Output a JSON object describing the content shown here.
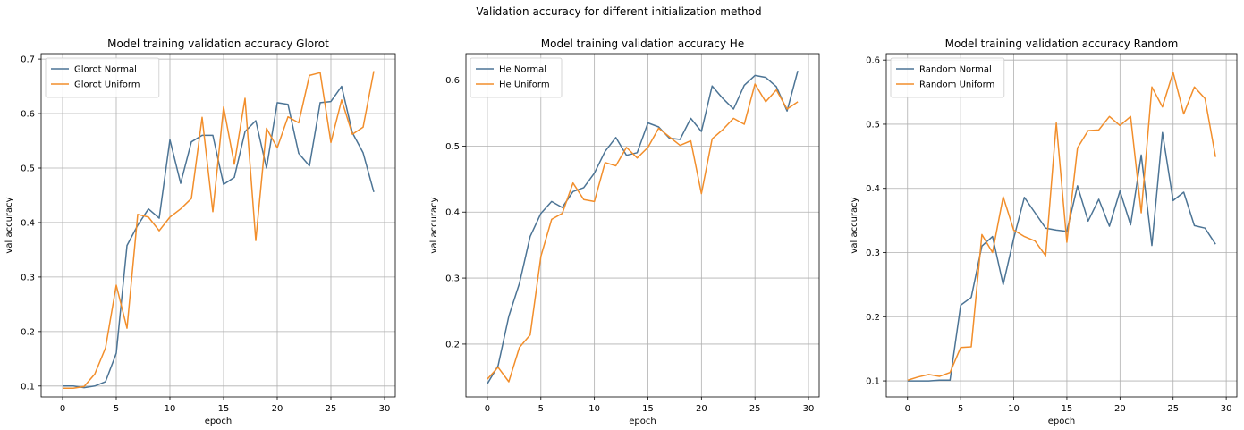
{
  "figure": {
    "suptitle": "Validation accuracy for different initialization method"
  },
  "chart_data": [
    {
      "type": "line",
      "title": "Model training validation accuracy Glorot",
      "xlabel": "epoch",
      "ylabel": "val accuracy",
      "xlim": [
        -2,
        31
      ],
      "ylim": [
        0.08,
        0.71
      ],
      "xticks": [
        0,
        5,
        10,
        15,
        20,
        25,
        30
      ],
      "yticks": [
        0.1,
        0.2,
        0.3,
        0.4,
        0.5,
        0.6,
        0.7
      ],
      "grid": true,
      "legend": "top-left",
      "x": [
        0,
        1,
        2,
        3,
        4,
        5,
        6,
        7,
        8,
        9,
        10,
        11,
        12,
        13,
        14,
        15,
        16,
        17,
        18,
        19,
        20,
        21,
        22,
        23,
        24,
        25,
        26,
        27,
        28,
        29
      ],
      "series": [
        {
          "name": "Glorot Normal",
          "color": "#4c7495",
          "values": [
            0.1,
            0.1,
            0.097,
            0.1,
            0.108,
            0.16,
            0.358,
            0.395,
            0.425,
            0.408,
            0.552,
            0.472,
            0.548,
            0.56,
            0.56,
            0.47,
            0.483,
            0.567,
            0.587,
            0.5,
            0.62,
            0.617,
            0.527,
            0.504,
            0.62,
            0.622,
            0.65,
            0.565,
            0.528,
            0.456
          ]
        },
        {
          "name": "Glorot Uniform",
          "color": "#f28e2b",
          "values": [
            0.096,
            0.096,
            0.099,
            0.122,
            0.17,
            0.285,
            0.206,
            0.415,
            0.41,
            0.385,
            0.41,
            0.425,
            0.444,
            0.593,
            0.42,
            0.612,
            0.507,
            0.628,
            0.367,
            0.573,
            0.537,
            0.594,
            0.583,
            0.67,
            0.675,
            0.547,
            0.625,
            0.562,
            0.575,
            0.678
          ]
        }
      ]
    },
    {
      "type": "line",
      "title": "Model training validation accuracy He",
      "xlabel": "epoch",
      "ylabel": "val accuracy",
      "xlim": [
        -2,
        31
      ],
      "ylim": [
        0.12,
        0.64
      ],
      "xticks": [
        0,
        5,
        10,
        15,
        20,
        25,
        30
      ],
      "yticks": [
        0.2,
        0.3,
        0.4,
        0.5,
        0.6
      ],
      "grid": true,
      "legend": "top-left",
      "x": [
        0,
        1,
        2,
        3,
        4,
        5,
        6,
        7,
        8,
        9,
        10,
        11,
        12,
        13,
        14,
        15,
        16,
        17,
        18,
        19,
        20,
        21,
        22,
        23,
        24,
        25,
        26,
        27,
        28,
        29
      ],
      "series": [
        {
          "name": "He Normal",
          "color": "#4c7495",
          "values": [
            0.14,
            0.167,
            0.242,
            0.292,
            0.363,
            0.398,
            0.416,
            0.407,
            0.431,
            0.437,
            0.459,
            0.492,
            0.513,
            0.486,
            0.49,
            0.535,
            0.529,
            0.512,
            0.51,
            0.542,
            0.522,
            0.591,
            0.572,
            0.556,
            0.592,
            0.607,
            0.604,
            0.59,
            0.553,
            0.614
          ]
        },
        {
          "name": "He Uniform",
          "color": "#f28e2b",
          "values": [
            0.147,
            0.165,
            0.143,
            0.195,
            0.214,
            0.333,
            0.389,
            0.398,
            0.444,
            0.419,
            0.416,
            0.475,
            0.47,
            0.498,
            0.482,
            0.498,
            0.527,
            0.514,
            0.501,
            0.508,
            0.428,
            0.511,
            0.525,
            0.542,
            0.533,
            0.594,
            0.567,
            0.585,
            0.556,
            0.567
          ]
        }
      ]
    },
    {
      "type": "line",
      "title": "Model training validation accuracy Random",
      "xlabel": "epoch",
      "ylabel": "val accuracy",
      "xlim": [
        -2,
        31
      ],
      "ylim": [
        0.075,
        0.61
      ],
      "xticks": [
        0,
        5,
        10,
        15,
        20,
        25,
        30
      ],
      "yticks": [
        0.1,
        0.2,
        0.3,
        0.4,
        0.5,
        0.6
      ],
      "grid": true,
      "legend": "top-left",
      "x": [
        0,
        1,
        2,
        3,
        4,
        5,
        6,
        7,
        8,
        9,
        10,
        11,
        12,
        13,
        14,
        15,
        16,
        17,
        18,
        19,
        20,
        21,
        22,
        23,
        24,
        25,
        26,
        27,
        28,
        29
      ],
      "series": [
        {
          "name": "Random Normal",
          "color": "#4c7495",
          "values": [
            0.1,
            0.1,
            0.1,
            0.101,
            0.101,
            0.218,
            0.23,
            0.31,
            0.325,
            0.25,
            0.322,
            0.386,
            0.362,
            0.338,
            0.335,
            0.333,
            0.404,
            0.349,
            0.383,
            0.341,
            0.396,
            0.343,
            0.452,
            0.311,
            0.487,
            0.381,
            0.394,
            0.342,
            0.338,
            0.313
          ]
        },
        {
          "name": "Random Uniform",
          "color": "#f28e2b",
          "values": [
            0.101,
            0.106,
            0.11,
            0.107,
            0.113,
            0.152,
            0.153,
            0.328,
            0.3,
            0.387,
            0.335,
            0.325,
            0.318,
            0.295,
            0.502,
            0.316,
            0.463,
            0.49,
            0.491,
            0.512,
            0.498,
            0.512,
            0.362,
            0.558,
            0.527,
            0.581,
            0.516,
            0.558,
            0.54,
            0.449
          ]
        }
      ]
    }
  ]
}
